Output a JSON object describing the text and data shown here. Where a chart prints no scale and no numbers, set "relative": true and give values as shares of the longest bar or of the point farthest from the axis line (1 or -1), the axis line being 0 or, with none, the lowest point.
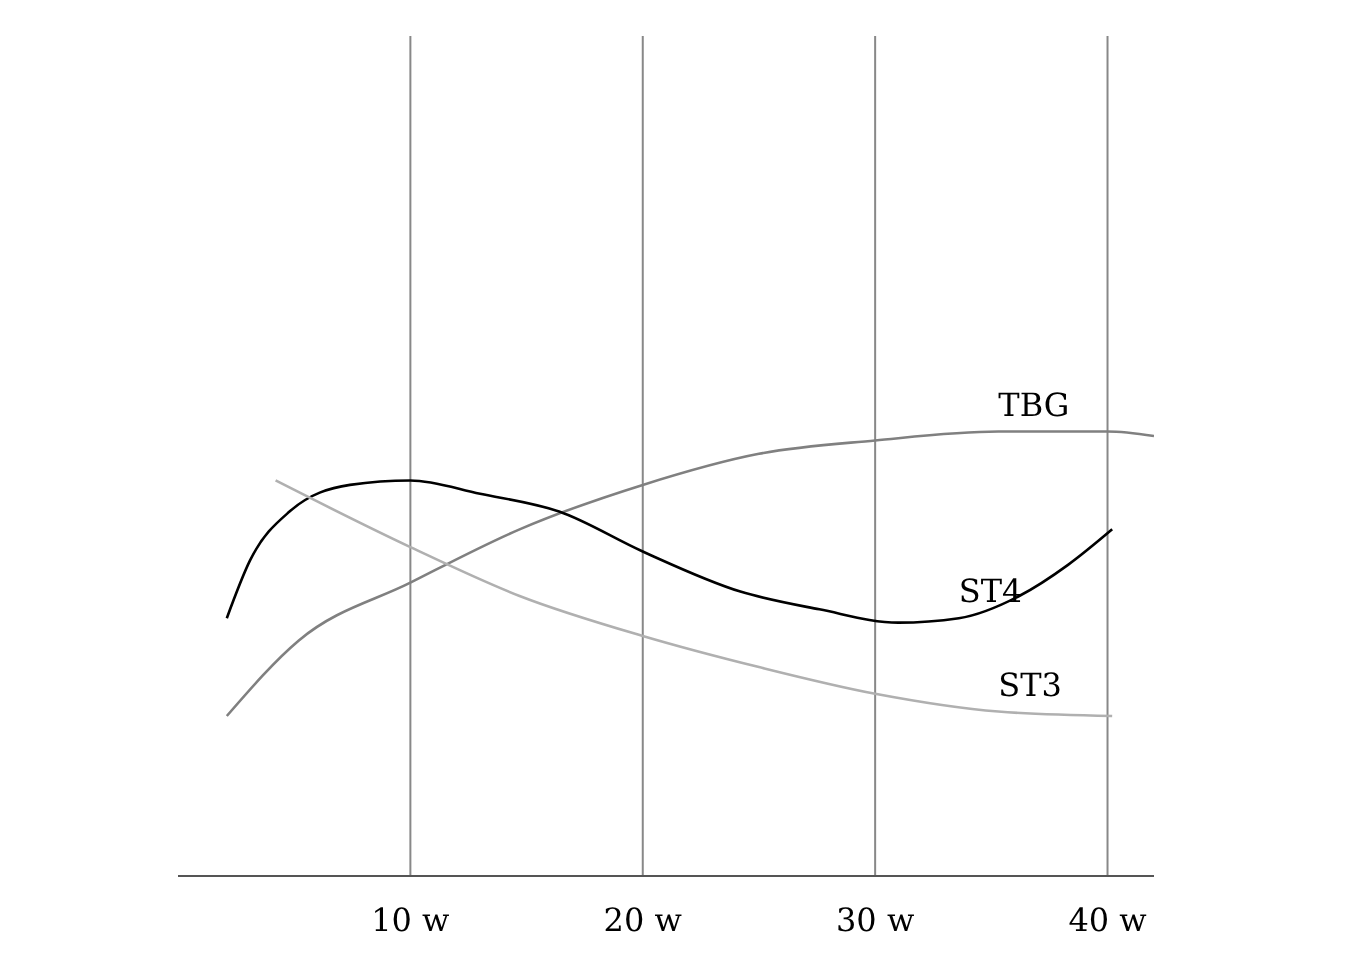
{
  "chart_data": {
    "type": "line",
    "relative": true,
    "xlim": [
      0,
      42
    ],
    "xticks": [
      {
        "value": 10,
        "label": "10 w"
      },
      {
        "value": 20,
        "label": "20 w"
      },
      {
        "value": 30,
        "label": "30 w"
      },
      {
        "value": 40,
        "label": "40 w"
      }
    ],
    "grid": "x",
    "marker": "none",
    "line_style": "solid",
    "series": [
      {
        "name": "TBG",
        "color": "#808080",
        "x": [
          2.1,
          5.2,
          10,
          14.7,
          20,
          25,
          30,
          35.3,
          40,
          42
        ],
        "values": [
          0.36,
          0.53,
          0.66,
          0.78,
          0.88,
          0.95,
          0.98,
          1,
          1,
          0.99
        ]
      },
      {
        "name": "ST4",
        "color": "#000000",
        "x": [
          2.1,
          3.1,
          4.8,
          7.4,
          10,
          13,
          16.4,
          20,
          24.2,
          27.6,
          31,
          33.6,
          36.2,
          38.3,
          40.2
        ],
        "values": [
          0.58,
          0.71,
          0.82,
          0.88,
          0.89,
          0.86,
          0.82,
          0.73,
          0.64,
          0.6,
          0.57,
          0.58,
          0.63,
          0.7,
          0.78
        ]
      },
      {
        "name": "ST3",
        "color": "#b0b0b0",
        "x": [
          4.2,
          10,
          14.7,
          20,
          25,
          30,
          35.3,
          40.2
        ],
        "values": [
          0.89,
          0.74,
          0.63,
          0.54,
          0.47,
          0.41,
          0.37,
          0.36
        ]
      }
    ]
  }
}
